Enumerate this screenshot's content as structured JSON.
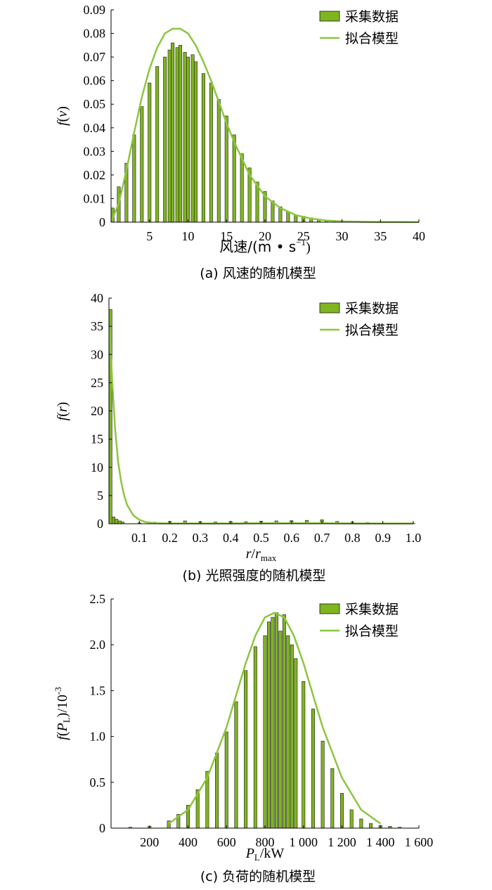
{
  "colors": {
    "bar_fill": "#7fb51f",
    "bar_stroke": "#1a1a1a",
    "fit_line": "#8cc63f",
    "axis": "#000000"
  },
  "legend_labels": {
    "bars": "采集数据",
    "line": "拟合模型"
  },
  "chart_data": [
    {
      "type": "bar",
      "panel_label": "(a)  风速的随机模型",
      "ylabel": {
        "main": "f",
        "open": "(",
        "var": "v",
        "close": ")"
      },
      "xlabel": {
        "main": "风速/(m • s",
        "sup": "−1",
        "close": ")"
      },
      "xlim": [
        0,
        40
      ],
      "ylim": [
        0,
        0.09
      ],
      "x_ticks": [
        5,
        10,
        15,
        20,
        25,
        30,
        35,
        40
      ],
      "x_tick_labels": [
        "5",
        "10",
        "15",
        "20",
        "25",
        "30",
        "35",
        "40"
      ],
      "y_ticks": [
        0,
        0.01,
        0.02,
        0.03,
        0.04,
        0.05,
        0.06,
        0.07,
        0.08,
        0.09
      ],
      "y_tick_labels": [
        "0",
        "0.01",
        "0.02",
        "0.03",
        "0.04",
        "0.05",
        "0.06",
        "0.07",
        "0.08",
        "0.09"
      ],
      "legend_position": "top-right",
      "histogram": {
        "bin_width": 0.4,
        "x": [
          0.2,
          1.0,
          2.0,
          3.0,
          4.0,
          5.0,
          6.0,
          7.0,
          7.6,
          8.0,
          8.6,
          9.0,
          9.6,
          10.0,
          10.6,
          11.0,
          12.0,
          13.0,
          14.0,
          15.0,
          16.0,
          17.0,
          18.0,
          19.0,
          20.0,
          21.0,
          22.0,
          23.0,
          24.0,
          25.0,
          26.0,
          27.0,
          28.0,
          30.0,
          32.0,
          34.0,
          36.0,
          38.0,
          40.0
        ],
        "y": [
          0.006,
          0.015,
          0.025,
          0.037,
          0.049,
          0.059,
          0.066,
          0.07,
          0.073,
          0.076,
          0.074,
          0.075,
          0.072,
          0.07,
          0.071,
          0.068,
          0.063,
          0.059,
          0.052,
          0.045,
          0.037,
          0.029,
          0.023,
          0.017,
          0.013,
          0.009,
          0.0065,
          0.0045,
          0.003,
          0.0025,
          0.0018,
          0.0012,
          0.0009,
          0.0006,
          0.0004,
          0.0003,
          0.0002,
          0.0001,
          0
        ]
      },
      "fit": {
        "x": [
          0,
          1,
          2,
          3,
          4,
          5,
          6,
          7,
          8,
          9,
          10,
          11,
          12,
          13,
          14,
          15,
          16,
          18,
          20,
          22,
          24,
          26,
          28,
          30,
          35,
          40
        ],
        "y": [
          0,
          0.008,
          0.022,
          0.038,
          0.053,
          0.065,
          0.074,
          0.08,
          0.082,
          0.082,
          0.08,
          0.075,
          0.068,
          0.06,
          0.051,
          0.042,
          0.034,
          0.02,
          0.011,
          0.006,
          0.003,
          0.0015,
          0.0007,
          0.0003,
          5e-05,
          0
        ]
      }
    },
    {
      "type": "bar",
      "panel_label": "(b)  光照强度的随机模型",
      "ylabel": {
        "main": "f",
        "open": "(",
        "var": "r",
        "close": ")"
      },
      "xlabel": {
        "main": "r",
        "mid": "/",
        "main2": "r",
        "sub": "max"
      },
      "xlim": [
        0,
        1.0
      ],
      "ylim": [
        0,
        40
      ],
      "x_ticks": [
        0.1,
        0.2,
        0.3,
        0.4,
        0.5,
        0.6,
        0.7,
        0.8,
        0.9,
        1.0
      ],
      "x_tick_labels": [
        "0.1",
        "0.2",
        "0.3",
        "0.4",
        "0.5",
        "0.6",
        "0.7",
        "0.8",
        "0.9",
        "1.0"
      ],
      "y_ticks": [
        0,
        5,
        10,
        15,
        20,
        25,
        30,
        35,
        40
      ],
      "y_tick_labels": [
        "0",
        "5",
        "10",
        "15",
        "20",
        "25",
        "30",
        "35",
        "40"
      ],
      "legend_position": "top-right",
      "histogram": {
        "bin_width": 0.01,
        "x": [
          0.005,
          0.015,
          0.025,
          0.035,
          0.045,
          0.1,
          0.15,
          0.2,
          0.25,
          0.3,
          0.35,
          0.4,
          0.45,
          0.5,
          0.55,
          0.6,
          0.65,
          0.7,
          0.75,
          0.8,
          0.85,
          0.9,
          0.95,
          1.0
        ],
        "y": [
          38,
          1.2,
          0.8,
          0.5,
          0.3,
          0.15,
          0.25,
          0.4,
          0.5,
          0.35,
          0.3,
          0.4,
          0.35,
          0.45,
          0.5,
          0.55,
          0.6,
          0.7,
          0.4,
          0.3,
          0.2,
          0.15,
          0.1,
          0.05
        ]
      },
      "fit": {
        "x": [
          0.002,
          0.01,
          0.02,
          0.03,
          0.04,
          0.05,
          0.06,
          0.08,
          0.1,
          0.12,
          0.15,
          0.2,
          0.3,
          0.4,
          0.5,
          0.6,
          0.7,
          0.8,
          0.9,
          1.0
        ],
        "y": [
          35,
          26,
          17,
          11,
          7.5,
          5,
          3.3,
          1.5,
          0.7,
          0.3,
          0.1,
          0.05,
          0.05,
          0.05,
          0.1,
          0.1,
          0.1,
          0.05,
          0.05,
          0.05
        ]
      }
    },
    {
      "type": "bar",
      "panel_label": "(c)  负荷的随机模型",
      "ylabel": {
        "main": "f",
        "open": "(",
        "var": "P",
        "sub": "L",
        "close": ")/10",
        "sup": "-3"
      },
      "xlabel": {
        "main": "P",
        "sub": "L",
        "rest": "/kW"
      },
      "xlim": [
        0,
        1600
      ],
      "ylim": [
        0,
        2.5
      ],
      "x_ticks": [
        200,
        400,
        600,
        800,
        1000,
        1200,
        1400,
        1600
      ],
      "x_tick_labels": [
        "200",
        "400",
        "600",
        "800",
        "1 000",
        "1 200",
        "1 400",
        "1 600"
      ],
      "y_ticks": [
        0,
        0.5,
        1.0,
        1.5,
        2.0,
        2.5
      ],
      "y_tick_labels": [
        "0",
        "0.5",
        "1.0",
        "1.5",
        "2.0",
        "2.5"
      ],
      "legend_position": "top-right",
      "histogram": {
        "bin_width": 16,
        "x": [
          100,
          200,
          300,
          350,
          400,
          450,
          500,
          550,
          600,
          650,
          700,
          750,
          800,
          820,
          840,
          860,
          880,
          900,
          920,
          940,
          960,
          1000,
          1050,
          1100,
          1150,
          1200,
          1250,
          1300,
          1350,
          1400,
          1450,
          1500
        ],
        "y": [
          0.01,
          0.02,
          0.08,
          0.15,
          0.25,
          0.42,
          0.62,
          0.82,
          1.05,
          1.38,
          1.72,
          1.98,
          2.1,
          2.25,
          2.3,
          2.35,
          2.15,
          2.33,
          2.1,
          2.0,
          1.85,
          1.6,
          1.3,
          0.95,
          0.65,
          0.38,
          0.2,
          0.1,
          0.05,
          0.03,
          0.02,
          0.01
        ]
      },
      "fit": {
        "x": [
          300,
          400,
          500,
          600,
          700,
          750,
          800,
          850,
          900,
          950,
          1000,
          1100,
          1200,
          1300,
          1400
        ],
        "y": [
          0.05,
          0.2,
          0.55,
          1.1,
          1.8,
          2.1,
          2.3,
          2.35,
          2.3,
          2.1,
          1.8,
          1.1,
          0.55,
          0.2,
          0.05
        ]
      }
    }
  ]
}
